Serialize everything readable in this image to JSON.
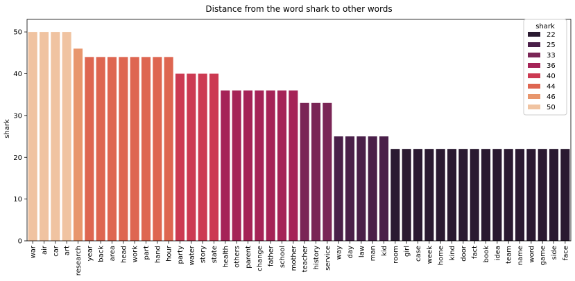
{
  "chart_data": {
    "type": "bar",
    "title": "Distance from the word shark to other words",
    "xlabel": "",
    "ylabel": "shark",
    "ylim": [
      0,
      53
    ],
    "yticks": [
      0,
      10,
      20,
      30,
      40,
      50
    ],
    "grid": false,
    "legend_position": "top-right",
    "categories": [
      "war",
      "air",
      "car",
      "art",
      "research",
      "year",
      "back",
      "area",
      "head",
      "work",
      "part",
      "hand",
      "hour",
      "party",
      "water",
      "story",
      "state",
      "health",
      "others",
      "parent",
      "change",
      "father",
      "school",
      "mother",
      "teacher",
      "history",
      "service",
      "way",
      "day",
      "law",
      "man",
      "kid",
      "room",
      "girl",
      "case",
      "week",
      "home",
      "kind",
      "door",
      "fact",
      "book",
      "idea",
      "team",
      "name",
      "word",
      "game",
      "side",
      "face"
    ],
    "values": [
      50,
      50,
      50,
      50,
      46,
      44,
      44,
      44,
      44,
      44,
      44,
      44,
      44,
      40,
      40,
      40,
      40,
      36,
      36,
      36,
      36,
      36,
      36,
      36,
      33,
      33,
      33,
      25,
      25,
      25,
      25,
      25,
      22,
      22,
      22,
      22,
      22,
      22,
      22,
      22,
      22,
      22,
      22,
      22,
      22,
      22,
      22,
      22
    ],
    "legend": {
      "title": "shark",
      "entries": [
        {
          "label": "22",
          "color": "#2a1a31"
        },
        {
          "label": "25",
          "color": "#4a1f49"
        },
        {
          "label": "33",
          "color": "#7a2556"
        },
        {
          "label": "36",
          "color": "#a52357"
        },
        {
          "label": "40",
          "color": "#cc3a52"
        },
        {
          "label": "44",
          "color": "#de6651"
        },
        {
          "label": "46",
          "color": "#e8966d"
        },
        {
          "label": "50",
          "color": "#f0c3a1"
        }
      ]
    }
  }
}
